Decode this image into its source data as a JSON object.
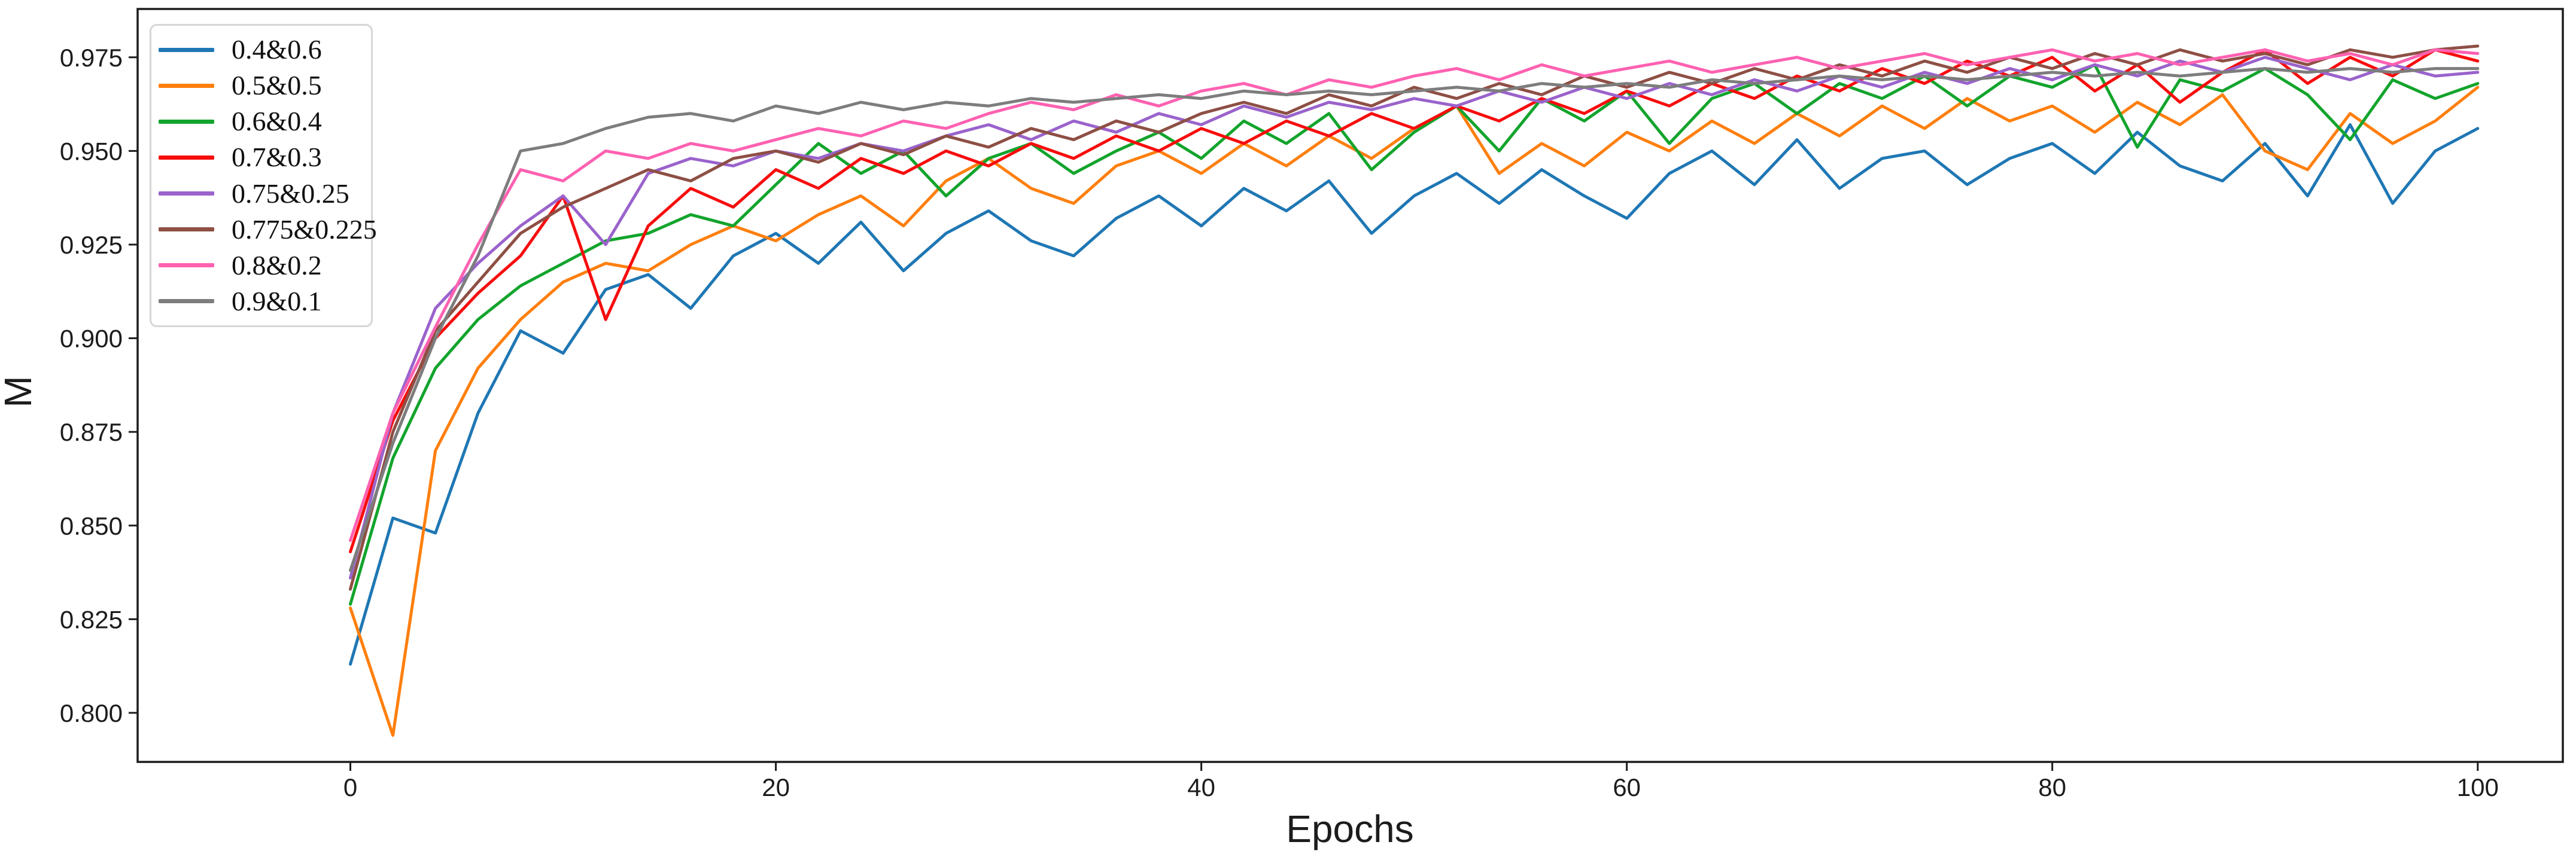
{
  "page": {
    "background": "#ffffff"
  },
  "chart_data": {
    "type": "line",
    "title": "",
    "xlabel": "Epochs",
    "ylabel": "M",
    "xlim": [
      -10,
      104
    ],
    "ylim": [
      0.7869,
      0.9879
    ],
    "grid": false,
    "legend_position": "upper left",
    "legend_border_color": "#d6d6d6",
    "axis_color": "#1c1c1c",
    "x_ticks": {
      "values": [
        0,
        20,
        40,
        60,
        80,
        100
      ],
      "labels": [
        "0",
        "20",
        "40",
        "60",
        "80",
        "100"
      ]
    },
    "y_ticks": {
      "values": [
        0.975,
        0.95,
        0.925,
        0.9,
        0.875,
        0.85,
        0.825,
        0.8
      ],
      "labels": [
        "0.975",
        "0.950",
        "0.925",
        "0.900",
        "0.875",
        "0.850",
        "0.825",
        "0.800"
      ]
    },
    "x": [
      0,
      2,
      4,
      6,
      8,
      10,
      12,
      14,
      16,
      18,
      20,
      22,
      24,
      26,
      28,
      30,
      32,
      34,
      36,
      38,
      40,
      42,
      44,
      46,
      48,
      50,
      52,
      54,
      56,
      58,
      60,
      62,
      64,
      66,
      68,
      70,
      72,
      74,
      76,
      78,
      80,
      82,
      84,
      86,
      88,
      90,
      92,
      94,
      96,
      98,
      100
    ],
    "series": [
      {
        "name": "0.4&0.6",
        "color": "#1f77b4",
        "values": [
          0.813,
          0.852,
          0.848,
          0.88,
          0.902,
          0.896,
          0.913,
          0.917,
          0.908,
          0.922,
          0.928,
          0.92,
          0.931,
          0.918,
          0.928,
          0.934,
          0.926,
          0.922,
          0.932,
          0.938,
          0.93,
          0.94,
          0.934,
          0.942,
          0.928,
          0.938,
          0.944,
          0.936,
          0.945,
          0.938,
          0.932,
          0.944,
          0.95,
          0.941,
          0.953,
          0.94,
          0.948,
          0.95,
          0.941,
          0.948,
          0.952,
          0.944,
          0.955,
          0.946,
          0.942,
          0.952,
          0.938,
          0.957,
          0.936,
          0.95,
          0.956
        ]
      },
      {
        "name": "0.5&0.5",
        "color": "#ff7f0e",
        "values": [
          0.828,
          0.794,
          0.87,
          0.892,
          0.905,
          0.915,
          0.92,
          0.918,
          0.925,
          0.93,
          0.926,
          0.933,
          0.938,
          0.93,
          0.942,
          0.948,
          0.94,
          0.936,
          0.946,
          0.95,
          0.944,
          0.952,
          0.946,
          0.954,
          0.948,
          0.956,
          0.962,
          0.944,
          0.952,
          0.946,
          0.955,
          0.95,
          0.958,
          0.952,
          0.96,
          0.954,
          0.962,
          0.956,
          0.964,
          0.958,
          0.962,
          0.955,
          0.963,
          0.957,
          0.965,
          0.95,
          0.945,
          0.96,
          0.952,
          0.958,
          0.967
        ]
      },
      {
        "name": "0.6&0.4",
        "color": "#12a42c",
        "values": [
          0.829,
          0.868,
          0.892,
          0.905,
          0.914,
          0.92,
          0.926,
          0.928,
          0.933,
          0.93,
          0.941,
          0.952,
          0.944,
          0.95,
          0.938,
          0.948,
          0.952,
          0.944,
          0.95,
          0.955,
          0.948,
          0.958,
          0.952,
          0.96,
          0.945,
          0.955,
          0.962,
          0.95,
          0.964,
          0.958,
          0.966,
          0.952,
          0.964,
          0.968,
          0.96,
          0.968,
          0.964,
          0.97,
          0.962,
          0.97,
          0.967,
          0.973,
          0.951,
          0.969,
          0.966,
          0.972,
          0.965,
          0.953,
          0.969,
          0.964,
          0.968
        ]
      },
      {
        "name": "0.7&0.3",
        "color": "#f70d0d",
        "values": [
          0.843,
          0.878,
          0.9,
          0.912,
          0.922,
          0.938,
          0.905,
          0.93,
          0.94,
          0.935,
          0.945,
          0.94,
          0.948,
          0.944,
          0.95,
          0.946,
          0.952,
          0.948,
          0.954,
          0.95,
          0.956,
          0.952,
          0.958,
          0.954,
          0.96,
          0.956,
          0.962,
          0.958,
          0.964,
          0.96,
          0.966,
          0.962,
          0.968,
          0.964,
          0.97,
          0.966,
          0.972,
          0.968,
          0.974,
          0.97,
          0.975,
          0.966,
          0.973,
          0.963,
          0.971,
          0.977,
          0.968,
          0.975,
          0.97,
          0.977,
          0.974
        ]
      },
      {
        "name": "0.75&0.25",
        "color": "#9a63cc",
        "values": [
          0.836,
          0.88,
          0.908,
          0.92,
          0.93,
          0.938,
          0.925,
          0.944,
          0.948,
          0.946,
          0.95,
          0.948,
          0.952,
          0.95,
          0.954,
          0.957,
          0.953,
          0.958,
          0.955,
          0.96,
          0.957,
          0.962,
          0.959,
          0.963,
          0.961,
          0.964,
          0.962,
          0.966,
          0.963,
          0.967,
          0.964,
          0.968,
          0.965,
          0.969,
          0.966,
          0.97,
          0.967,
          0.971,
          0.968,
          0.972,
          0.969,
          0.973,
          0.97,
          0.974,
          0.971,
          0.975,
          0.972,
          0.969,
          0.973,
          0.97,
          0.971
        ]
      },
      {
        "name": "0.775&0.225",
        "color": "#8e4f45",
        "values": [
          0.833,
          0.875,
          0.902,
          0.915,
          0.928,
          0.935,
          0.94,
          0.945,
          0.942,
          0.948,
          0.95,
          0.947,
          0.952,
          0.949,
          0.954,
          0.951,
          0.956,
          0.953,
          0.958,
          0.955,
          0.96,
          0.963,
          0.96,
          0.965,
          0.962,
          0.967,
          0.964,
          0.968,
          0.965,
          0.97,
          0.967,
          0.971,
          0.968,
          0.972,
          0.969,
          0.973,
          0.97,
          0.974,
          0.971,
          0.975,
          0.972,
          0.976,
          0.973,
          0.977,
          0.974,
          0.976,
          0.973,
          0.977,
          0.975,
          0.977,
          0.978
        ]
      },
      {
        "name": "0.8&0.2",
        "color": "#fe61b1",
        "values": [
          0.846,
          0.88,
          0.903,
          0.925,
          0.945,
          0.942,
          0.95,
          0.948,
          0.952,
          0.95,
          0.953,
          0.956,
          0.954,
          0.958,
          0.956,
          0.96,
          0.963,
          0.961,
          0.965,
          0.962,
          0.966,
          0.968,
          0.965,
          0.969,
          0.967,
          0.97,
          0.972,
          0.969,
          0.973,
          0.97,
          0.972,
          0.974,
          0.971,
          0.973,
          0.975,
          0.972,
          0.974,
          0.976,
          0.973,
          0.975,
          0.977,
          0.974,
          0.976,
          0.973,
          0.975,
          0.977,
          0.974,
          0.976,
          0.973,
          0.977,
          0.976
        ]
      },
      {
        "name": "0.9&0.1",
        "color": "#7d7d7d",
        "values": [
          0.838,
          0.872,
          0.9,
          0.922,
          0.95,
          0.952,
          0.956,
          0.959,
          0.96,
          0.958,
          0.962,
          0.96,
          0.963,
          0.961,
          0.963,
          0.962,
          0.964,
          0.963,
          0.964,
          0.965,
          0.964,
          0.966,
          0.965,
          0.966,
          0.965,
          0.966,
          0.967,
          0.966,
          0.968,
          0.967,
          0.968,
          0.967,
          0.969,
          0.968,
          0.969,
          0.97,
          0.969,
          0.97,
          0.969,
          0.97,
          0.971,
          0.97,
          0.971,
          0.97,
          0.971,
          0.972,
          0.971,
          0.972,
          0.971,
          0.972,
          0.972
        ]
      }
    ]
  }
}
